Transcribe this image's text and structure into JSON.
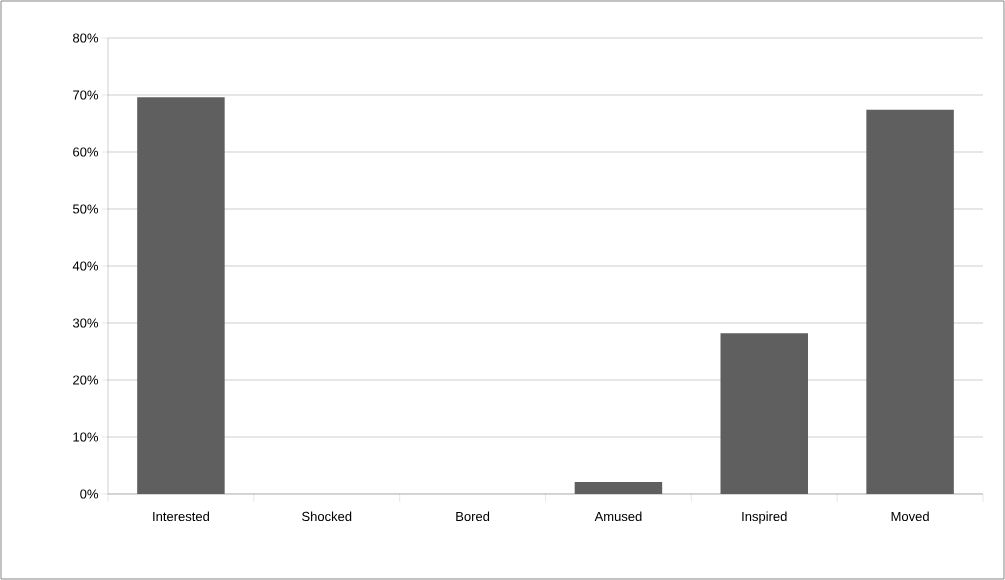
{
  "chart_data": {
    "type": "bar",
    "categories": [
      "Interested",
      "Shocked",
      "Bored",
      "Amused",
      "Inspired",
      "Moved"
    ],
    "values": [
      69.6,
      0,
      0,
      2.1,
      28.2,
      67.4
    ],
    "color": "#5f5f5f",
    "ylim": [
      0,
      80
    ],
    "yticks": [
      {
        "value": 0,
        "label": "0%"
      },
      {
        "value": 10,
        "label": "10%"
      },
      {
        "value": 20,
        "label": "20%"
      },
      {
        "value": 30,
        "label": "30%"
      },
      {
        "value": 40,
        "label": "40%"
      },
      {
        "value": 50,
        "label": "50%"
      },
      {
        "value": 60,
        "label": "60%"
      },
      {
        "value": 70,
        "label": "70%"
      },
      {
        "value": 80,
        "label": "80%"
      }
    ],
    "grid": "y"
  }
}
